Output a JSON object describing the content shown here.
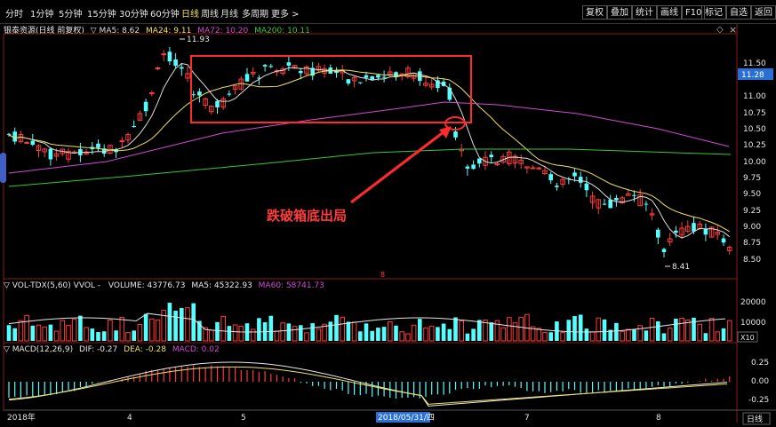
{
  "toolbar": {
    "periods": [
      "分时",
      "1分钟",
      "5分钟",
      "15分钟",
      "30分钟",
      "60分钟",
      "日线",
      "周线",
      "月线",
      "多周期",
      "更多 >"
    ],
    "active_period": "日线",
    "right_buttons": [
      "复权",
      "叠加",
      "统计",
      "画线",
      "F10",
      "标记",
      "自选",
      "返回"
    ]
  },
  "price_panel": {
    "title": "银泰资源(日线 前复权)",
    "indicators": [
      {
        "label": "▽ MA5: 8.62",
        "color": "#dddddd"
      },
      {
        "label": "MA24: 9.11",
        "color": "#f0e25a"
      },
      {
        "label": "MA72: 10.20",
        "color": "#d44ad4"
      },
      {
        "label": "MA200: 10.11",
        "color": "#33cc33"
      }
    ],
    "high_label": "11.93",
    "low_label": "8.41",
    "current_price": "11.28",
    "marker": "8",
    "annotation": "跌破箱底出局",
    "y_ticks": [
      "11.50",
      "11.25",
      "11.00",
      "10.75",
      "10.50",
      "10.25",
      "10.00",
      "9.75",
      "9.50",
      "9.25",
      "9.00",
      "8.75",
      "8.50"
    ]
  },
  "volume_panel": {
    "title": "▽ VOL-TDX(5,60) VVOL -",
    "volume": "VOLUME: 43776.73",
    "ma5": "MA5: 45322.93",
    "ma60": "MA60: 58741.73",
    "y_ticks": [
      "20000",
      "10000"
    ],
    "unit": "X10"
  },
  "macd_panel": {
    "title": "▽ MACD(12,26,9)",
    "dif": "DIF: -0.27",
    "dea": "DEA: -0.28",
    "macd": "MACD: 0.02",
    "y_ticks": [
      "0.25",
      "0.00",
      "-0.25"
    ]
  },
  "time_axis": {
    "labels": [
      "2018年",
      "4",
      "5",
      "2018/05/31/四",
      "7",
      "8"
    ],
    "period_button": "日线"
  },
  "colors": {
    "up": "#ff3b3b",
    "down": "#54ffff",
    "ma5": "#dddddd",
    "ma24": "#f0e25a",
    "ma72": "#d44ad4",
    "ma200": "#33cc33",
    "box": "#ff2a2a"
  }
}
